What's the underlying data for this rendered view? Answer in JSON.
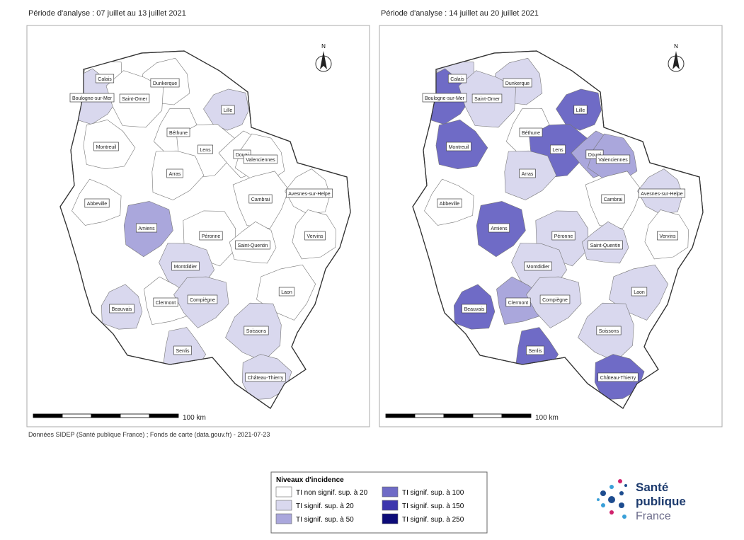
{
  "panels": [
    {
      "title": "Période d'analyse : 07 juillet au 13 juillet 2021",
      "north": "N",
      "scale": "100 km",
      "places": [
        {
          "name": "Calais",
          "level": 0
        },
        {
          "name": "Dunkerque",
          "level": 0
        },
        {
          "name": "Boulogne-sur-Mer",
          "level": 1
        },
        {
          "name": "Saint-Omer",
          "level": 0
        },
        {
          "name": "Lille",
          "level": 1
        },
        {
          "name": "Béthune",
          "level": 0
        },
        {
          "name": "Montreuil",
          "level": 0
        },
        {
          "name": "Lens",
          "level": 0
        },
        {
          "name": "Douai",
          "level": 0
        },
        {
          "name": "Valenciennes",
          "level": 0
        },
        {
          "name": "Arras",
          "level": 0
        },
        {
          "name": "Cambrai",
          "level": 0
        },
        {
          "name": "Avesnes-sur-Helpe",
          "level": 0
        },
        {
          "name": "Abbeville",
          "level": 0
        },
        {
          "name": "Amiens",
          "level": 2
        },
        {
          "name": "Péronne",
          "level": 0
        },
        {
          "name": "Saint-Quentin",
          "level": 0
        },
        {
          "name": "Vervins",
          "level": 0
        },
        {
          "name": "Montdidier",
          "level": 1
        },
        {
          "name": "Laon",
          "level": 0
        },
        {
          "name": "Beauvais",
          "level": 1
        },
        {
          "name": "Clermont",
          "level": 0
        },
        {
          "name": "Compiègne",
          "level": 1
        },
        {
          "name": "Soissons",
          "level": 1
        },
        {
          "name": "Senlis",
          "level": 1
        },
        {
          "name": "Château-Thierry",
          "level": 1
        }
      ]
    },
    {
      "title": "Période d'analyse : 14 juillet au 20 juillet 2021",
      "north": "N",
      "scale": "100 km",
      "places": [
        {
          "name": "Calais",
          "level": 1
        },
        {
          "name": "Dunkerque",
          "level": 1
        },
        {
          "name": "Boulogne-sur-Mer",
          "level": 3
        },
        {
          "name": "Saint-Omer",
          "level": 1
        },
        {
          "name": "Lille",
          "level": 3
        },
        {
          "name": "Béthune",
          "level": 0
        },
        {
          "name": "Montreuil",
          "level": 3
        },
        {
          "name": "Lens",
          "level": 3
        },
        {
          "name": "Douai",
          "level": 2
        },
        {
          "name": "Valenciennes",
          "level": 2
        },
        {
          "name": "Arras",
          "level": 1
        },
        {
          "name": "Cambrai",
          "level": 0
        },
        {
          "name": "Avesnes-sur-Helpe",
          "level": 1
        },
        {
          "name": "Abbeville",
          "level": 0
        },
        {
          "name": "Amiens",
          "level": 3
        },
        {
          "name": "Péronne",
          "level": 1
        },
        {
          "name": "Saint-Quentin",
          "level": 1
        },
        {
          "name": "Vervins",
          "level": 0
        },
        {
          "name": "Montdidier",
          "level": 1
        },
        {
          "name": "Laon",
          "level": 1
        },
        {
          "name": "Beauvais",
          "level": 3
        },
        {
          "name": "Clermont",
          "level": 2
        },
        {
          "name": "Compiègne",
          "level": 1
        },
        {
          "name": "Soissons",
          "level": 1
        },
        {
          "name": "Senlis",
          "level": 3
        },
        {
          "name": "Château-Thierry",
          "level": 3
        }
      ]
    }
  ],
  "source": "Données SIDEP (Santé publique France) ; Fonds de carte (data.gouv.fr) - 2021-07-23",
  "legend": {
    "title": "Niveaux d'incidence",
    "items": [
      {
        "label": "TI non signif. sup. à 20",
        "color": "#ffffff"
      },
      {
        "label": "TI signif. sup. à 20",
        "color": "#d9d8ee"
      },
      {
        "label": "TI signif. sup. à 50",
        "color": "#aaa7dc"
      },
      {
        "label": "TI signif. sup. à 100",
        "color": "#6f6bc6"
      },
      {
        "label": "TI signif. sup. à 150",
        "color": "#3d36ad"
      },
      {
        "label": "TI signif. sup. à 250",
        "color": "#0d0c78"
      }
    ]
  },
  "logo": {
    "line1": "Santé",
    "line2": "publique",
    "line3": "France"
  }
}
